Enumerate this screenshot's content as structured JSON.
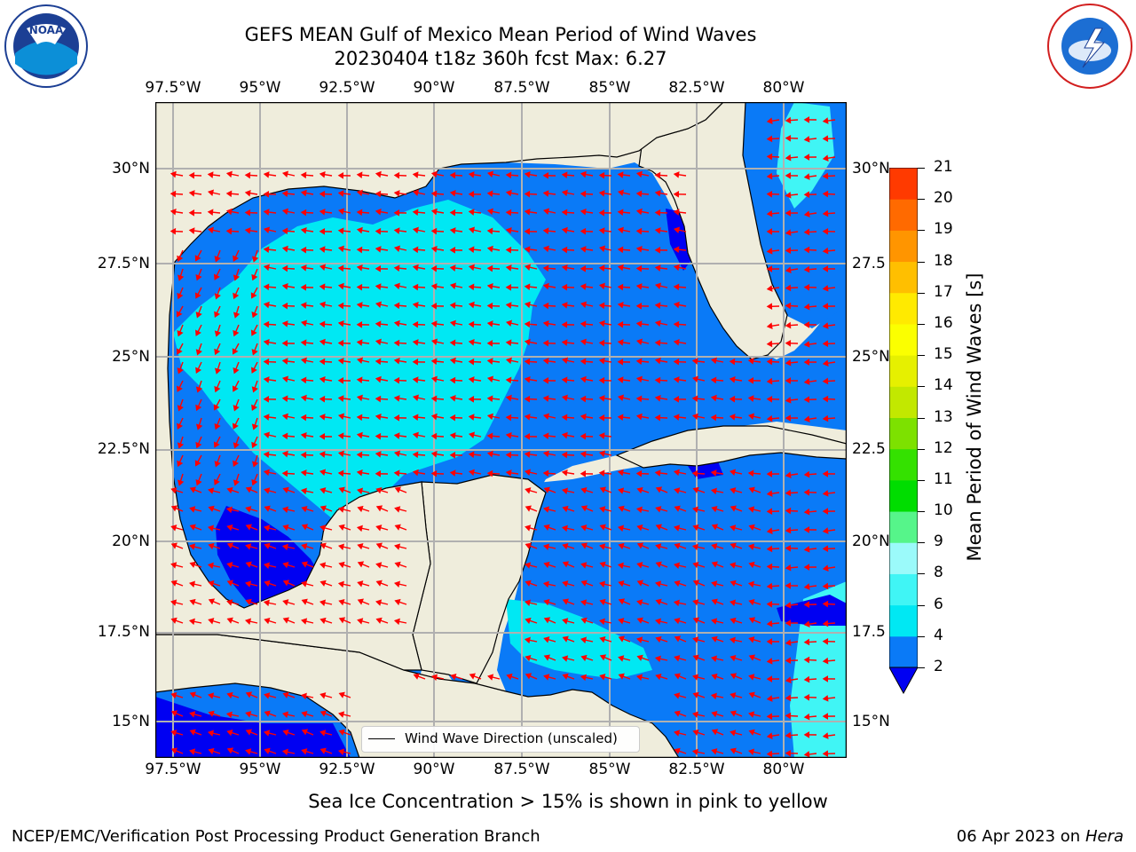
{
  "title_line1": "GEFS MEAN Gulf of Mexico Mean Period of Wind Waves",
  "title_line2": "20230404 t18z 360h fcst   Max: 6.27",
  "logos": {
    "left": "NOAA",
    "right": "NATIONAL WEATHER SERVICE"
  },
  "lon_ticks": [
    "97.5°W",
    "95°W",
    "92.5°W",
    "90°W",
    "87.5°W",
    "85°W",
    "82.5°W",
    "80°W"
  ],
  "lat_ticks_left": [
    "30°N",
    "27.5°N",
    "25°N",
    "22.5°N",
    "20°N",
    "17.5°N",
    "15°N"
  ],
  "lat_ticks_right": [
    "30°N",
    "27.5",
    "25°N",
    "22.5",
    "20°N",
    "17.5",
    "15°N"
  ],
  "legend_text": "Wind Wave Direction (unscaled)",
  "colorbar": {
    "label": "Mean Period of Wind Waves [s]",
    "ticks": [
      "2",
      "4",
      "6",
      "8",
      "9",
      "10",
      "11",
      "12",
      "13",
      "14",
      "15",
      "16",
      "17",
      "18",
      "19",
      "20",
      "21"
    ],
    "colors": [
      "#0a7af7",
      "#00e8f3",
      "#40f5f5",
      "#9bfafa",
      "#56f58a",
      "#00dd00",
      "#34e100",
      "#7de100",
      "#c2e800",
      "#e6f000",
      "#fbff00",
      "#ffea00",
      "#ffbf00",
      "#ff9500",
      "#ff6a00",
      "#ff3a00",
      "#ff0000"
    ],
    "under_color": "#0000f2"
  },
  "map_colors": {
    "land": "#efeddc",
    "ocean_dark": "#0000f2",
    "ocean_mid": "#0a7af7",
    "ocean_light": "#00e8f3",
    "ocean_pale": "#40f5f5",
    "arrow": "#ff0000",
    "grid": "#b0b0b0"
  },
  "footer_note": "Sea Ice Concentration > 15% is shown in pink to yellow",
  "footer_left": "NCEP/EMC/Verification Post Processing Product Generation Branch",
  "footer_right_date": "06 Apr 2023 on ",
  "footer_right_machine": "Hera"
}
